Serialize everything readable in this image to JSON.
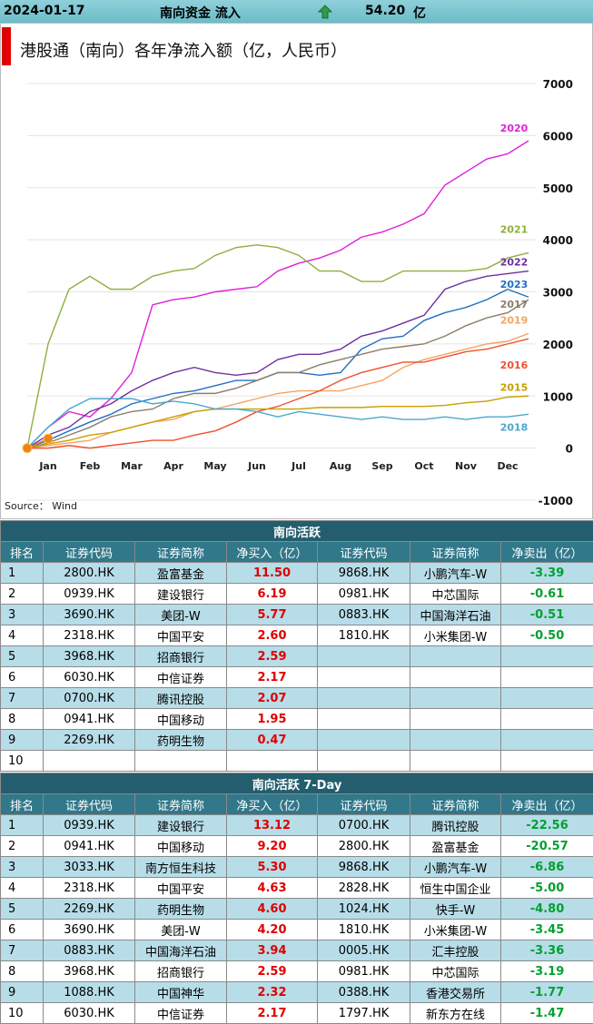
{
  "header": {
    "date": "2024-01-17",
    "label": "南向资金 流入",
    "value": "54.20",
    "unit": "亿"
  },
  "chart_data": {
    "type": "line",
    "title": "港股通（南向）各年净流入额（亿，人民币）",
    "source": "Source： Wind",
    "categories": [
      null,
      "Jan",
      null,
      "Feb",
      null,
      "Mar",
      null,
      "Apr",
      null,
      "May",
      null,
      "Jun",
      null,
      "Jul",
      null,
      "Aug",
      null,
      "Sep",
      null,
      "Oct",
      null,
      "Nov",
      null,
      "Dec",
      null
    ],
    "ylim": [
      -1000,
      7000
    ],
    "yticks": [
      7000,
      6000,
      5000,
      4000,
      3000,
      2000,
      1000,
      0,
      -1000
    ],
    "grid": true,
    "series": [
      {
        "name": "2020",
        "color": "#e020d8",
        "values": [
          0,
          400,
          700,
          600,
          950,
          1450,
          2750,
          2850,
          2900,
          3000,
          3050,
          3100,
          3400,
          3550,
          3650,
          3800,
          4050,
          4150,
          4300,
          4500,
          5050,
          5300,
          5550,
          5650,
          5900
        ]
      },
      {
        "name": "2021",
        "color": "#8db040",
        "values": [
          0,
          2000,
          3050,
          3300,
          3050,
          3050,
          3300,
          3400,
          3450,
          3700,
          3850,
          3900,
          3850,
          3700,
          3400,
          3400,
          3200,
          3200,
          3400,
          3400,
          3400,
          3400,
          3450,
          3650,
          3750
        ]
      },
      {
        "name": "2022",
        "color": "#7030a0",
        "values": [
          0,
          250,
          400,
          700,
          850,
          1100,
          1300,
          1450,
          1550,
          1450,
          1400,
          1450,
          1700,
          1800,
          1800,
          1900,
          2150,
          2250,
          2400,
          2550,
          3050,
          3200,
          3300,
          3350,
          3400
        ]
      },
      {
        "name": "2023",
        "color": "#2070c0",
        "values": [
          0,
          150,
          330,
          500,
          650,
          850,
          950,
          1050,
          1100,
          1200,
          1300,
          1300,
          1450,
          1450,
          1400,
          1450,
          1900,
          2100,
          2150,
          2450,
          2600,
          2700,
          2850,
          3050,
          2900
        ]
      },
      {
        "name": "2017",
        "color": "#8c7d6a",
        "values": [
          0,
          100,
          250,
          400,
          600,
          700,
          750,
          950,
          1050,
          1050,
          1150,
          1300,
          1450,
          1450,
          1600,
          1700,
          1800,
          1900,
          1950,
          2000,
          2150,
          2350,
          2500,
          2600,
          2850
        ]
      },
      {
        "name": "2019",
        "color": "#f4a460",
        "values": [
          0,
          50,
          100,
          150,
          300,
          400,
          500,
          550,
          700,
          750,
          850,
          950,
          1050,
          1100,
          1100,
          1100,
          1200,
          1300,
          1550,
          1700,
          1800,
          1900,
          2000,
          2050,
          2200
        ]
      },
      {
        "name": "2016",
        "color": "#f05030",
        "values": [
          0,
          0,
          50,
          0,
          50,
          100,
          150,
          150,
          250,
          330,
          500,
          700,
          800,
          950,
          1100,
          1300,
          1450,
          1550,
          1650,
          1650,
          1750,
          1850,
          1900,
          2000,
          2100
        ]
      },
      {
        "name": "2015",
        "color": "#c8a000",
        "values": [
          0,
          80,
          150,
          250,
          300,
          400,
          500,
          600,
          700,
          750,
          750,
          750,
          750,
          750,
          780,
          780,
          780,
          800,
          800,
          800,
          820,
          870,
          900,
          980,
          1000
        ]
      },
      {
        "name": "2018",
        "color": "#4aa8d0",
        "values": [
          0,
          400,
          750,
          950,
          950,
          950,
          850,
          900,
          850,
          750,
          750,
          700,
          600,
          700,
          650,
          600,
          550,
          600,
          550,
          550,
          600,
          550,
          600,
          600,
          650
        ]
      },
      {
        "color": "#f08020",
        "markers": true,
        "values": [
          0,
          180,
          null,
          null,
          null,
          null,
          null,
          null,
          null,
          null,
          null,
          null,
          null,
          null,
          null,
          null,
          null,
          null,
          null,
          null,
          null,
          null,
          null,
          null,
          null
        ]
      }
    ]
  },
  "tables": [
    {
      "title": "南向活跃",
      "columns": [
        "排名",
        "证券代码",
        "证券简称",
        "净买入（亿）",
        "证券代码",
        "证券简称",
        "净卖出（亿）"
      ],
      "rows": [
        [
          "1",
          "2800.HK",
          "盈富基金",
          "11.50",
          "9868.HK",
          "小鹏汽车-W",
          "-3.39"
        ],
        [
          "2",
          "0939.HK",
          "建设银行",
          "6.19",
          "0981.HK",
          "中芯国际",
          "-0.61"
        ],
        [
          "3",
          "3690.HK",
          "美团-W",
          "5.77",
          "0883.HK",
          "中国海洋石油",
          "-0.51"
        ],
        [
          "4",
          "2318.HK",
          "中国平安",
          "2.60",
          "1810.HK",
          "小米集团-W",
          "-0.50"
        ],
        [
          "5",
          "3968.HK",
          "招商银行",
          "2.59",
          null,
          null,
          null
        ],
        [
          "6",
          "6030.HK",
          "中信证券",
          "2.17",
          null,
          null,
          null
        ],
        [
          "7",
          "0700.HK",
          "腾讯控股",
          "2.07",
          null,
          null,
          null
        ],
        [
          "8",
          "0941.HK",
          "中国移动",
          "1.95",
          null,
          null,
          null
        ],
        [
          "9",
          "2269.HK",
          "药明生物",
          "0.47",
          null,
          null,
          null
        ],
        [
          "10",
          null,
          null,
          null,
          null,
          null,
          null
        ]
      ]
    },
    {
      "title": "南向活跃 7-Day",
      "columns": [
        "排名",
        "证券代码",
        "证券简称",
        "净买入（亿）",
        "证券代码",
        "证券简称",
        "净卖出（亿）"
      ],
      "rows": [
        [
          "1",
          "0939.HK",
          "建设银行",
          "13.12",
          "0700.HK",
          "腾讯控股",
          "-22.56"
        ],
        [
          "2",
          "0941.HK",
          "中国移动",
          "9.20",
          "2800.HK",
          "盈富基金",
          "-20.57"
        ],
        [
          "3",
          "3033.HK",
          "南方恒生科技",
          "5.30",
          "9868.HK",
          "小鹏汽车-W",
          "-6.86"
        ],
        [
          "4",
          "2318.HK",
          "中国平安",
          "4.63",
          "2828.HK",
          "恒生中国企业",
          "-5.00"
        ],
        [
          "5",
          "2269.HK",
          "药明生物",
          "4.60",
          "1024.HK",
          "快手-W",
          "-4.80"
        ],
        [
          "6",
          "3690.HK",
          "美团-W",
          "4.20",
          "1810.HK",
          "小米集团-W",
          "-3.45"
        ],
        [
          "7",
          "0883.HK",
          "中国海洋石油",
          "3.94",
          "0005.HK",
          "汇丰控股",
          "-3.36"
        ],
        [
          "8",
          "3968.HK",
          "招商银行",
          "2.59",
          "0981.HK",
          "中芯国际",
          "-3.19"
        ],
        [
          "9",
          "1088.HK",
          "中国神华",
          "2.32",
          "0388.HK",
          "香港交易所",
          "-1.77"
        ],
        [
          "10",
          "6030.HK",
          "中信证券",
          "2.17",
          "1797.HK",
          "新东方在线",
          "-1.47"
        ]
      ]
    }
  ]
}
